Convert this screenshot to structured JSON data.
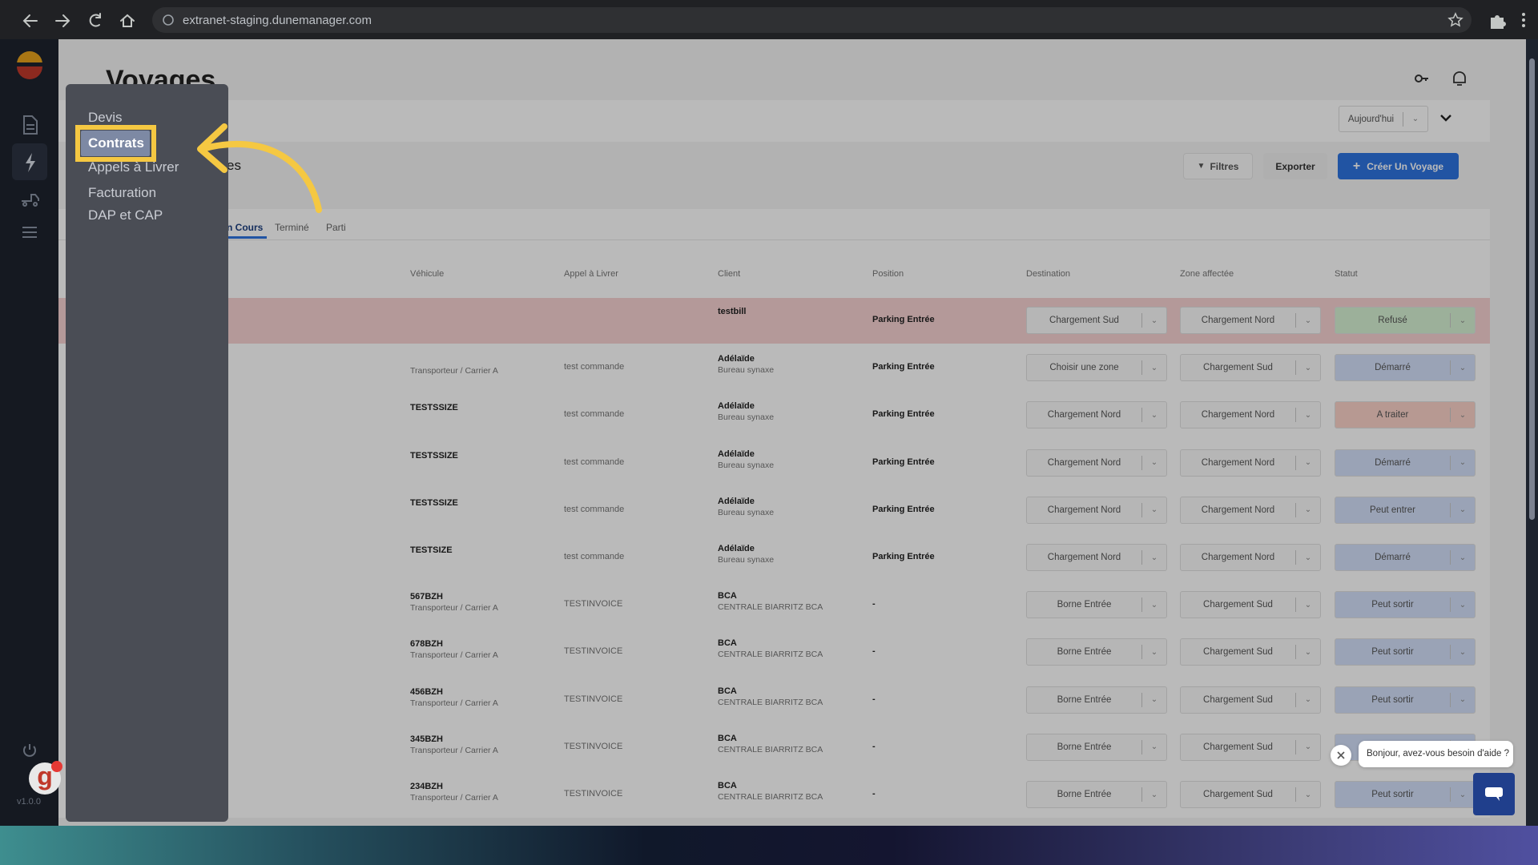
{
  "browser": {
    "url": "extranet-staging.dunemanager.com"
  },
  "page": {
    "title": "Voyages",
    "partial_label": "es"
  },
  "menu": {
    "items": [
      "Devis",
      "Contrats",
      "Appels à Livrer",
      "Facturation",
      "DAP et CAP"
    ],
    "highlighted": 1
  },
  "toolbar": {
    "date_filter": "Aujourd'hui",
    "buttons": [
      "Filtres",
      "Exporter",
      "Créer Un Voyage"
    ]
  },
  "tabs": {
    "items": [
      "En Cours",
      "Terminé",
      "Parti"
    ],
    "active": 0
  },
  "table": {
    "headers": [
      "Véhicule",
      "Appel à Livrer",
      "Client",
      "Position",
      "Destination",
      "Zone affectée",
      "Statut"
    ],
    "rows": [
      {
        "client": "testbill",
        "position": "Parking Entrée",
        "destination": "Chargement Sud",
        "zone": "Chargement Nord",
        "statut": "Refusé",
        "statut_color": "#d6f2d3",
        "highlighted": true
      },
      {
        "carrier": "Transporteur / Carrier A",
        "appel": "test commande",
        "client": "Adélaïde",
        "client_sub": "Bureau synaxe",
        "position": "Parking Entrée",
        "destination": "Choisir une zone",
        "zone": "Chargement Sud",
        "statut": "Démarré",
        "statut_color": "#d3e0fa"
      },
      {
        "vehicle": "TESTSSIZE",
        "appel": "test commande",
        "client": "Adélaïde",
        "client_sub": "Bureau synaxe",
        "position": "Parking Entrée",
        "destination": "Chargement Nord",
        "zone": "Chargement Nord",
        "statut": "A traiter",
        "statut_color": "#fbd2c9"
      },
      {
        "vehicle": "TESTSSIZE",
        "appel": "test commande",
        "client": "Adélaïde",
        "client_sub": "Bureau synaxe",
        "position": "Parking Entrée",
        "destination": "Chargement Nord",
        "zone": "Chargement Nord",
        "statut": "Démarré",
        "statut_color": "#d3e0fa"
      },
      {
        "vehicle": "TESTSSIZE",
        "appel": "test commande",
        "client": "Adélaïde",
        "client_sub": "Bureau synaxe",
        "position": "Parking Entrée",
        "destination": "Chargement Nord",
        "zone": "Chargement Nord",
        "statut": "Peut entrer",
        "statut_color": "#d3e0fa"
      },
      {
        "vehicle": "TESTSIZE",
        "appel": "test commande",
        "client": "Adélaïde",
        "client_sub": "Bureau synaxe",
        "position": "Parking Entrée",
        "destination": "Chargement Nord",
        "zone": "Chargement Nord",
        "statut": "Démarré",
        "statut_color": "#d3e0fa"
      },
      {
        "vehicle": "567BZH",
        "carrier": "Transporteur / Carrier A",
        "appel": "TESTINVOICE",
        "client": "BCA",
        "client_sub": "CENTRALE BIARRITZ BCA",
        "position": "-",
        "destination": "Borne Entrée",
        "zone": "Chargement Sud",
        "statut": "Peut sortir",
        "statut_color": "#d3e0fa"
      },
      {
        "vehicle": "678BZH",
        "carrier": "Transporteur / Carrier A",
        "appel": "TESTINVOICE",
        "client": "BCA",
        "client_sub": "CENTRALE BIARRITZ BCA",
        "position": "-",
        "destination": "Borne Entrée",
        "zone": "Chargement Sud",
        "statut": "Peut sortir",
        "statut_color": "#d3e0fa"
      },
      {
        "vehicle": "456BZH",
        "carrier": "Transporteur / Carrier A",
        "appel": "TESTINVOICE",
        "client": "BCA",
        "client_sub": "CENTRALE BIARRITZ BCA",
        "position": "-",
        "destination": "Borne Entrée",
        "zone": "Chargement Sud",
        "statut": "Peut sortir",
        "statut_color": "#d3e0fa"
      },
      {
        "vehicle": "345BZH",
        "carrier": "Transporteur / Carrier A",
        "appel": "TESTINVOICE",
        "client": "BCA",
        "client_sub": "CENTRALE BIARRITZ BCA",
        "position": "-",
        "destination": "Borne Entrée",
        "zone": "Chargement Sud",
        "statut_color": "#d3e0fa"
      },
      {
        "vehicle": "234BZH",
        "carrier": "Transporteur / Carrier A",
        "appel": "TESTINVOICE",
        "client": "BCA",
        "client_sub": "CENTRALE BIARRITZ BCA",
        "position": "-",
        "destination": "Borne Entrée",
        "zone": "Chargement Sud",
        "statut": "Peut sortir",
        "statut_color": "#d3e0fa"
      }
    ]
  },
  "sidebar": {
    "version": "v1.0.0"
  },
  "chat": {
    "message": "Bonjour, avez-vous besoin d'aide ?"
  }
}
